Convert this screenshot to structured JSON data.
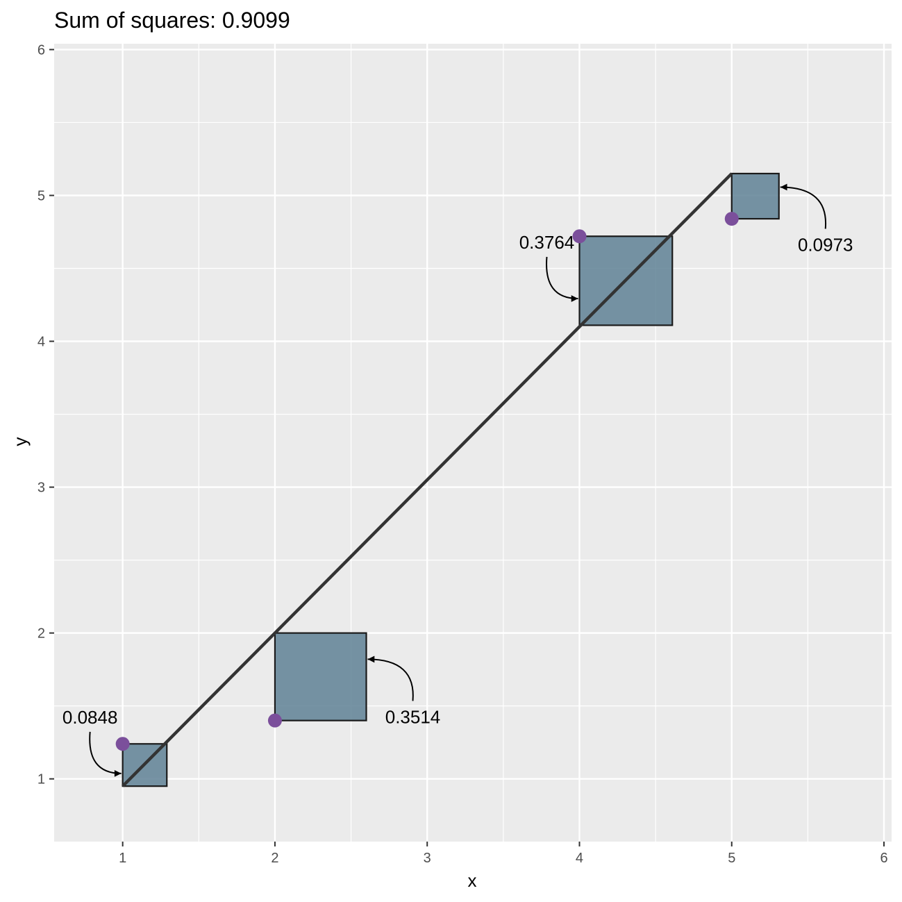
{
  "chart_data": {
    "type": "scatter",
    "title": "Sum of squares: 0.9099",
    "xlabel": "x",
    "ylabel": "y",
    "xlim": [
      0.55,
      6.05
    ],
    "ylim": [
      0.57,
      6.04
    ],
    "x_ticks": [
      1,
      2,
      3,
      4,
      5,
      6
    ],
    "y_ticks": [
      1,
      2,
      3,
      4,
      5,
      6
    ],
    "grid": true,
    "panel_background": "#ebebeb",
    "colors": {
      "point": "#7b4f9b",
      "square_fill": "#5f8195",
      "line": "#333333"
    },
    "fit_line": {
      "x": [
        1,
        5
      ],
      "y": [
        0.95,
        5.15
      ]
    },
    "points": [
      {
        "x": 1,
        "y": 1.24,
        "fitted": 0.95,
        "square_area": "0.0848"
      },
      {
        "x": 2,
        "y": 1.4,
        "fitted": 2.0,
        "square_area": "0.3514"
      },
      {
        "x": 4,
        "y": 4.72,
        "fitted": 4.11,
        "square_area": "0.3764"
      },
      {
        "x": 5,
        "y": 4.84,
        "fitted": 5.15,
        "square_area": "0.0973"
      }
    ]
  }
}
